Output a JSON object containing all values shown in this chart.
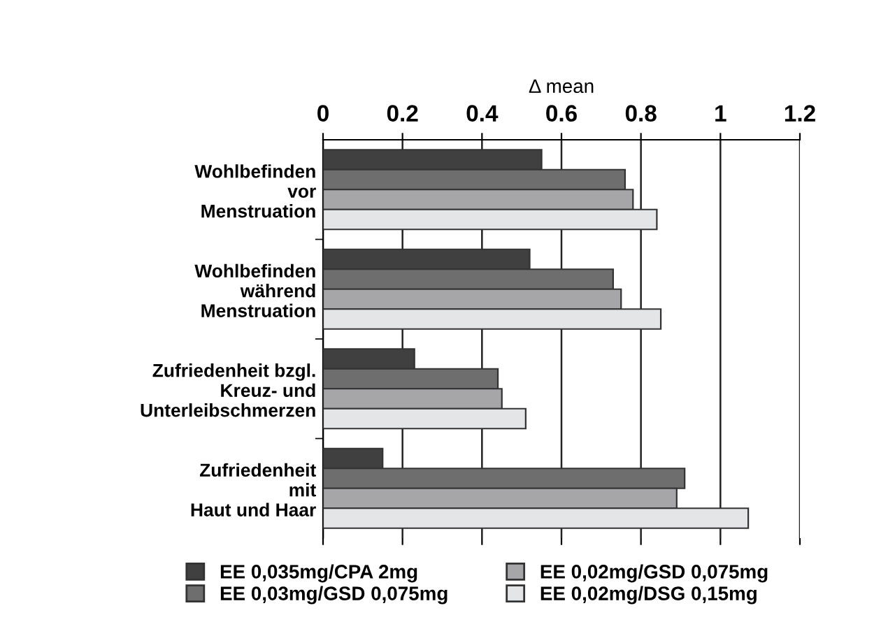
{
  "chart_data": {
    "type": "bar",
    "orientation": "horizontal",
    "xlabel": "Δ mean",
    "categories": [
      "Wohlbefinden\nvor\nMenstruation",
      "Wohlbefinden\nwährend\nMenstruation",
      "Zufriedenheit bzgl.\nKreuz- und\nUnterleibschmerzen",
      "Zufriedenheit\nmit\nHaut und Haar"
    ],
    "series": [
      {
        "name": "EE 0,035mg/CPA 2mg",
        "color": "#404040",
        "values": [
          0.55,
          0.52,
          0.23,
          0.15
        ]
      },
      {
        "name": "EE 0,03mg/GSD 0,075mg",
        "color": "#6e6e6e",
        "values": [
          0.76,
          0.73,
          0.44,
          0.91
        ]
      },
      {
        "name": "EE 0,02mg/GSD 0,075mg",
        "color": "#a6a6a8",
        "values": [
          0.78,
          0.75,
          0.45,
          0.89
        ]
      },
      {
        "name": "EE 0,02mg/DSG 0,15mg",
        "color": "#e4e5e7",
        "values": [
          0.84,
          0.85,
          0.51,
          1.07
        ]
      }
    ],
    "xlim": [
      0,
      1.2
    ],
    "xticks": [
      0,
      0.2,
      0.4,
      0.6,
      0.8,
      1,
      1.2
    ],
    "grid": "x",
    "legend": "bottom"
  }
}
